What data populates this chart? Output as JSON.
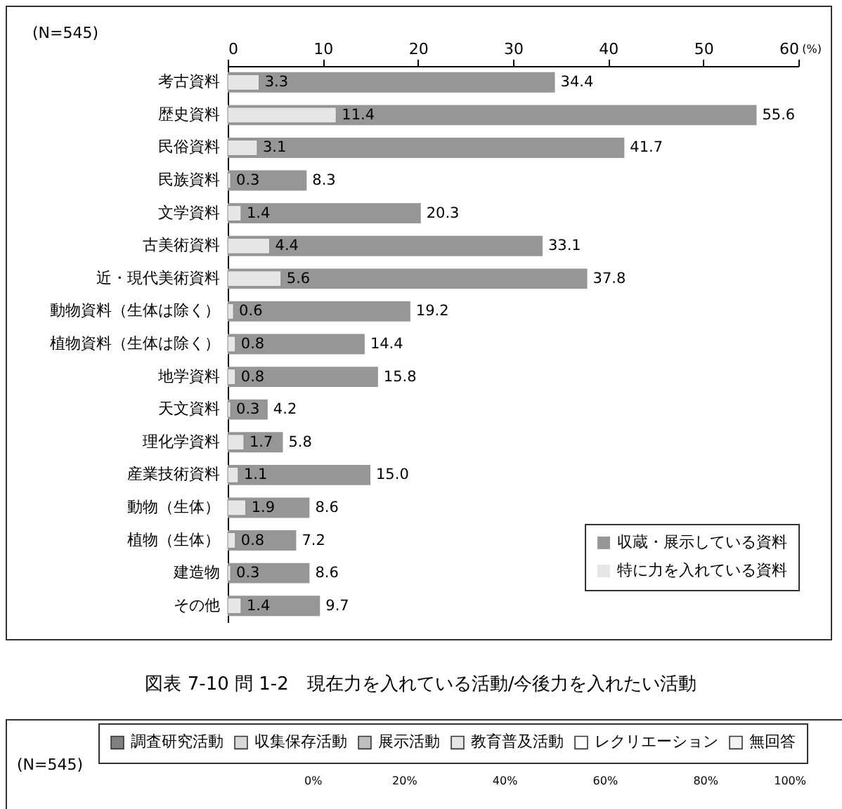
{
  "chart_data": [
    {
      "type": "bar",
      "orientation": "horizontal",
      "xlabel": "(%)",
      "annotations": [
        "(N=545)"
      ],
      "categories": [
        "考古資料",
        "歴史資料",
        "民俗資料",
        "民族資料",
        "文学資料",
        "古美術資料",
        "近・現代美術資料",
        "動物資料（生体は除く）",
        "植物資料（生体は除く）",
        "地学資料",
        "天文資料",
        "理化学資料",
        "産業技術資料",
        "動物（生体）",
        "植物（生体）",
        "建造物",
        "その他"
      ],
      "series": [
        {
          "name": "収蔵・展示している資料",
          "color": "#969696",
          "values": [
            34.4,
            55.6,
            41.7,
            8.3,
            20.3,
            33.1,
            37.8,
            19.2,
            14.4,
            15.8,
            4.2,
            5.8,
            15.0,
            8.6,
            7.2,
            8.6,
            9.7
          ],
          "value_labels": [
            "34.4",
            "55.6",
            "41.7",
            "8.3",
            "20.3",
            "33.1",
            "37.8",
            "19.2",
            "14.4",
            "15.8",
            "4.2",
            "5.8",
            "15.0",
            "8.6",
            "7.2",
            "8.6",
            "9.7"
          ]
        },
        {
          "name": "特に力を入れている資料",
          "color": "#e6e6e6",
          "values": [
            3.3,
            11.4,
            3.1,
            0.3,
            1.4,
            4.4,
            5.6,
            0.6,
            0.8,
            0.8,
            0.3,
            1.7,
            1.1,
            1.9,
            0.8,
            0.3,
            1.4
          ],
          "value_labels": [
            "3.3",
            "11.4",
            "3.1",
            "0.3",
            "1.4",
            "4.4",
            "5.6",
            "0.6",
            "0.8",
            "0.8",
            "0.3",
            "1.7",
            "1.1",
            "1.9",
            "0.8",
            "0.3",
            "1.4"
          ]
        }
      ],
      "xlim": [
        0,
        60
      ],
      "xticks": [
        0,
        10,
        20,
        30,
        40,
        50,
        60
      ],
      "grid": false,
      "legend": "bottom right"
    },
    {
      "type": "bar",
      "orientation": "horizontal",
      "title": "図表 7-10 問 1-2　現在力を入れている活動/今後力を入れたい活動",
      "annotations": [
        "(N=545)"
      ],
      "series": [
        {
          "name": "調査研究活動",
          "color": "#808080"
        },
        {
          "name": "収集保存活動",
          "color": "#d9d9d9"
        },
        {
          "name": "展示活動",
          "color": "#bfbfbf"
        },
        {
          "name": "教育普及活動",
          "color": "#e6e6e6"
        },
        {
          "name": "レクリエーション",
          "color": "#ffffff"
        },
        {
          "name": "無回答",
          "color": "#f2f2f2"
        }
      ],
      "xlim": [
        0,
        100
      ],
      "xticks": [
        {
          "value": 0,
          "label": "0%"
        },
        {
          "value": 20,
          "label": "20%"
        },
        {
          "value": 40,
          "label": "40%"
        },
        {
          "value": 60,
          "label": "60%"
        },
        {
          "value": 80,
          "label": "80%"
        },
        {
          "value": 100,
          "label": "100%"
        }
      ],
      "legend": "top"
    }
  ]
}
